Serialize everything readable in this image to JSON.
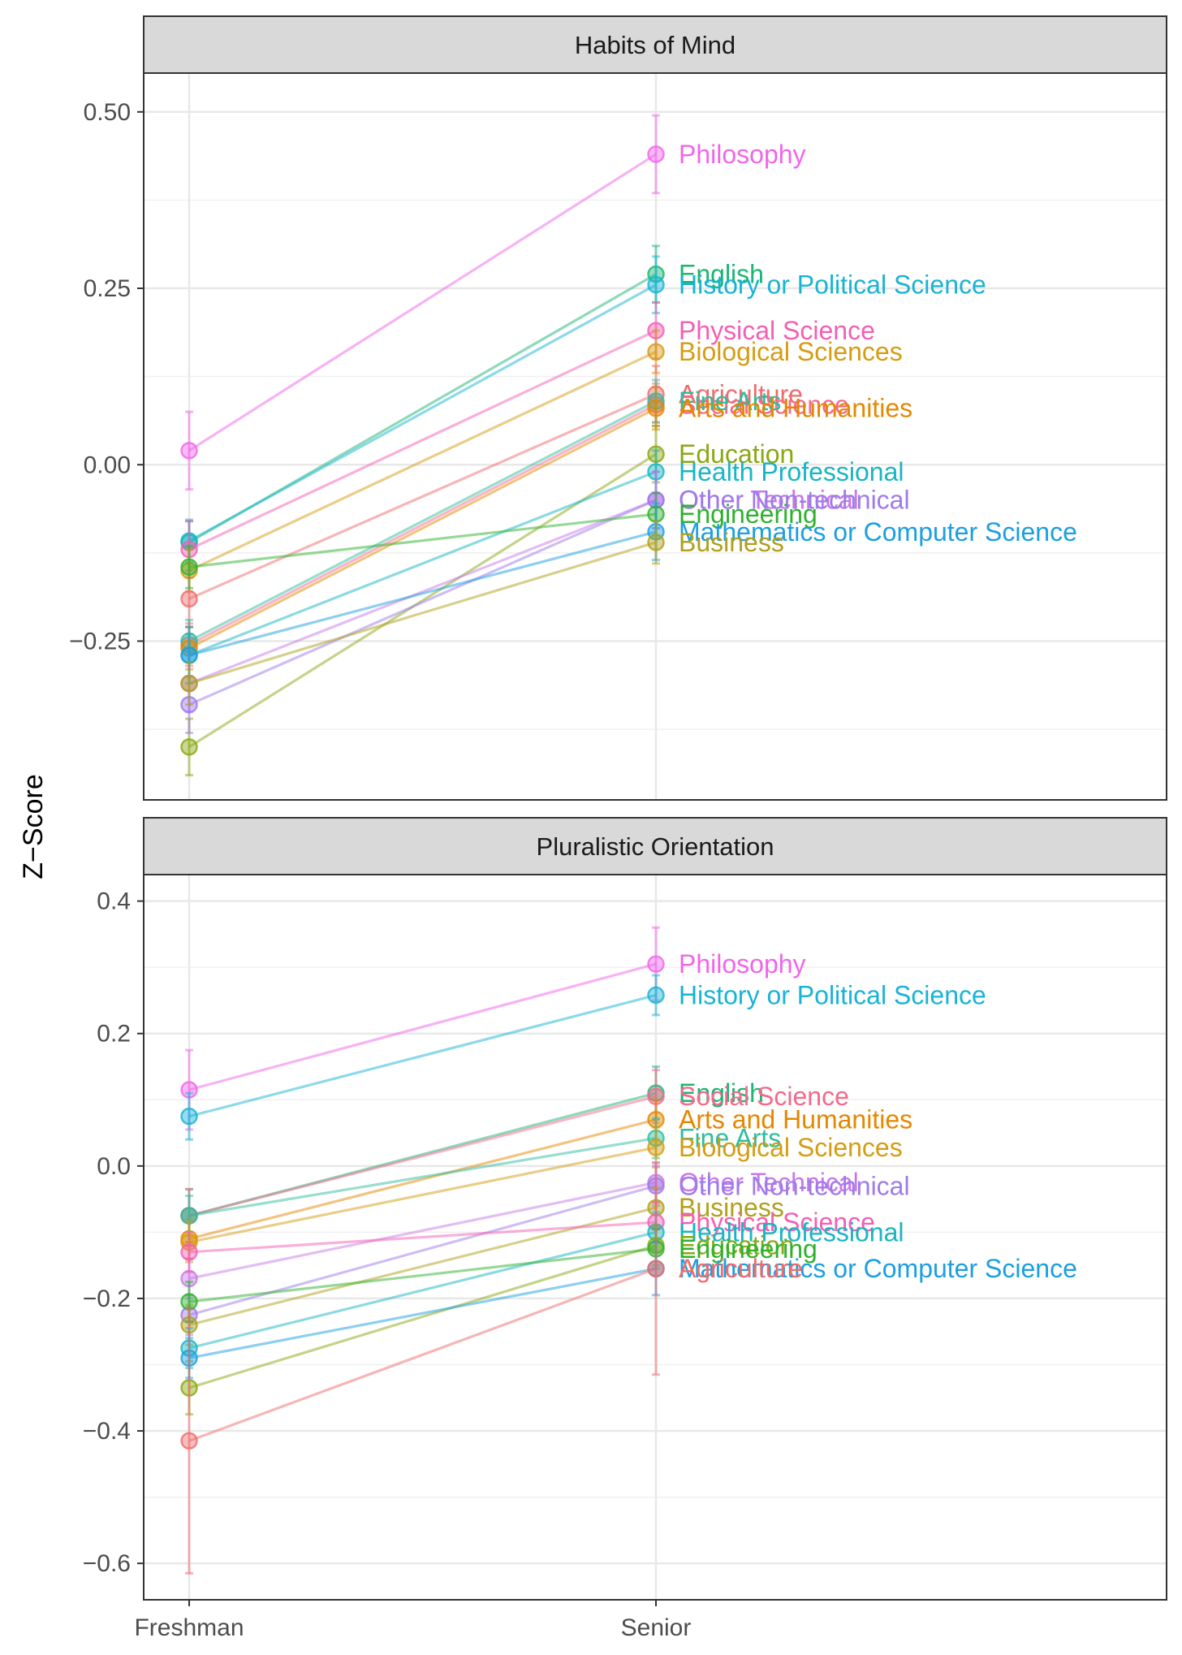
{
  "chart_data": {
    "type": "line",
    "ylabel": "Z−Score",
    "xlabel": "",
    "x_categories": [
      "Freshman",
      "Senior"
    ],
    "series_colors": {
      "Agriculture": "#F8766D",
      "Arts and Humanities": "#E58700",
      "Biological Sciences": "#C99800",
      "Business": "#A3A500",
      "Education": "#6BB100",
      "Engineering": "#00BA38",
      "English": "#00BF7D",
      "Fine Arts": "#00C0AF",
      "Health Professional": "#00BCD8",
      "History or Political Science": "#00B0F6",
      "Mathematics or Computer Science": "#619CFF",
      "Other Non-technical": "#B983FF",
      "Other Technical": "#E76BF3",
      "Philosophy": "#FD61D1",
      "Physical Science": "#FF67A4",
      "Social Science": "#FF6C91"
    },
    "panels": [
      {
        "title": "Habits of Mind",
        "ylim": [
          -0.475,
          0.555
        ],
        "yticks": [
          0.5,
          0.25,
          0.0,
          -0.25
        ],
        "ytick_labels": [
          "0.50",
          "0.25",
          "0.00",
          "−0.25"
        ],
        "series": [
          {
            "name": "Philosophy",
            "label": "Philosophy",
            "values": [
              0.02,
              0.44
            ],
            "err": [
              0.055,
              0.055
            ],
            "color": "#F066EA"
          },
          {
            "name": "English",
            "label": "English",
            "values": [
              -0.11,
              0.27
            ],
            "err": [
              0.03,
              0.04
            ],
            "color": "#1CB573"
          },
          {
            "name": "History or Political Science",
            "label": "History or Political Science",
            "values": [
              -0.108,
              0.255
            ],
            "err": [
              0.03,
              0.04
            ],
            "color": "#18B3D6"
          },
          {
            "name": "Physical Science",
            "label": "Physical Science",
            "values": [
              -0.12,
              0.19
            ],
            "err": [
              0.04,
              0.04
            ],
            "color": "#F35FB5"
          },
          {
            "name": "Biological Sciences",
            "label": "Biological Sciences",
            "values": [
              -0.15,
              0.16
            ],
            "err": [
              0.03,
              0.03
            ],
            "color": "#D69C12"
          },
          {
            "name": "Agriculture",
            "label": "Agriculture",
            "values": [
              -0.19,
              0.1
            ],
            "err": [
              0.04,
              0.04
            ],
            "color": "#F06C6C"
          },
          {
            "name": "Social Science",
            "label": "Social Science",
            "values": [
              -0.255,
              0.085
            ],
            "err": [
              0.03,
              0.03
            ],
            "color": "#F46A8E"
          },
          {
            "name": "Fine Arts",
            "label": "Fine Arts",
            "values": [
              -0.25,
              0.09
            ],
            "err": [
              0.03,
              0.03
            ],
            "color": "#2DBE9E"
          },
          {
            "name": "Arts and Humanities",
            "label": "Arts and Humanities",
            "values": [
              -0.26,
              0.08
            ],
            "err": [
              0.03,
              0.03
            ],
            "color": "#E58700"
          },
          {
            "name": "Education",
            "label": "Education",
            "values": [
              -0.4,
              0.015
            ],
            "err": [
              0.04,
              0.04
            ],
            "color": "#8AA812"
          },
          {
            "name": "Health Professional",
            "label": "Health Professional",
            "values": [
              -0.27,
              -0.01
            ],
            "err": [
              0.03,
              0.03
            ],
            "color": "#18B5C4"
          },
          {
            "name": "Other Technical",
            "label": "Other Technical",
            "values": [
              -0.31,
              -0.05
            ],
            "err": [
              0.04,
              0.04
            ],
            "color": "#C879E8"
          },
          {
            "name": "Other Non-technical",
            "label": "Other Non-technical",
            "values": [
              -0.34,
              -0.05
            ],
            "err": [
              0.04,
              0.04
            ],
            "color": "#9E7BEA"
          },
          {
            "name": "Engineering",
            "label": "Engineering",
            "values": [
              -0.145,
              -0.07
            ],
            "err": [
              0.03,
              0.03
            ],
            "color": "#2EB22E"
          },
          {
            "name": "Mathematics or Computer Science",
            "label": "Mathematics or Computer Science",
            "values": [
              -0.27,
              -0.095
            ],
            "err": [
              0.04,
              0.04
            ],
            "color": "#1C9FE0"
          },
          {
            "name": "Business",
            "label": "Business",
            "values": [
              -0.31,
              -0.11
            ],
            "err": [
              0.03,
              0.03
            ],
            "color": "#B0A01A"
          }
        ]
      },
      {
        "title": "Pluralistic Orientation",
        "ylim": [
          -0.655,
          0.44
        ],
        "yticks": [
          0.4,
          0.2,
          0.0,
          -0.2,
          -0.4,
          -0.6
        ],
        "ytick_labels": [
          "0.4",
          "0.2",
          "0.0",
          "−0.2",
          "−0.4",
          "−0.6"
        ],
        "series": [
          {
            "name": "Philosophy",
            "label": "Philosophy",
            "values": [
              0.115,
              0.305
            ],
            "err": [
              0.06,
              0.055
            ],
            "color": "#F066EA"
          },
          {
            "name": "History or Political Science",
            "label": "History or Political Science",
            "values": [
              0.075,
              0.258
            ],
            "err": [
              0.035,
              0.03
            ],
            "color": "#18B3D6"
          },
          {
            "name": "English",
            "label": "English",
            "values": [
              -0.075,
              0.11
            ],
            "err": [
              0.04,
              0.04
            ],
            "color": "#1CB573"
          },
          {
            "name": "Social Science",
            "label": "Social Science",
            "values": [
              -0.075,
              0.105
            ],
            "err": [
              0.04,
              0.04
            ],
            "color": "#F46A8E"
          },
          {
            "name": "Arts and Humanities",
            "label": "Arts and Humanities",
            "values": [
              -0.11,
              0.07
            ],
            "err": [
              0.03,
              0.03
            ],
            "color": "#E58700"
          },
          {
            "name": "Fine Arts",
            "label": "Fine Arts",
            "values": [
              -0.075,
              0.042
            ],
            "err": [
              0.03,
              0.03
            ],
            "color": "#2DBE9E"
          },
          {
            "name": "Biological Sciences",
            "label": "Biological Sciences",
            "values": [
              -0.115,
              0.028
            ],
            "err": [
              0.03,
              0.03
            ],
            "color": "#D69C12"
          },
          {
            "name": "Other Technical",
            "label": "Other Technical",
            "values": [
              -0.17,
              -0.025
            ],
            "err": [
              0.03,
              0.03
            ],
            "color": "#C879E8"
          },
          {
            "name": "Other Non-technical",
            "label": "Other Non-technical",
            "values": [
              -0.225,
              -0.03
            ],
            "err": [
              0.03,
              0.03
            ],
            "color": "#9E7BEA"
          },
          {
            "name": "Business",
            "label": "Business",
            "values": [
              -0.24,
              -0.063
            ],
            "err": [
              0.03,
              0.03
            ],
            "color": "#B0A01A"
          },
          {
            "name": "Physical Science",
            "label": "Physical Science",
            "values": [
              -0.13,
              -0.085
            ],
            "err": [
              0.03,
              0.03
            ],
            "color": "#F35FB5"
          },
          {
            "name": "Health Professional",
            "label": "Health Professional",
            "values": [
              -0.275,
              -0.1
            ],
            "err": [
              0.03,
              0.03
            ],
            "color": "#18B5C4"
          },
          {
            "name": "Education",
            "label": "Education",
            "values": [
              -0.335,
              -0.12
            ],
            "err": [
              0.04,
              0.03
            ],
            "color": "#8AA812"
          },
          {
            "name": "Engineering",
            "label": "Engineering",
            "values": [
              -0.205,
              -0.125
            ],
            "err": [
              0.03,
              0.03
            ],
            "color": "#2EB22E"
          },
          {
            "name": "Mathematics or Computer Science",
            "label": "Mathematics or Computer Science",
            "values": [
              -0.29,
              -0.155
            ],
            "err": [
              0.03,
              0.04
            ],
            "color": "#1C9FE0"
          },
          {
            "name": "Agriculture",
            "label": "Agriculture",
            "values": [
              -0.415,
              -0.155
            ],
            "err": [
              0.2,
              0.16
            ],
            "color": "#F06C6C"
          }
        ]
      }
    ]
  }
}
